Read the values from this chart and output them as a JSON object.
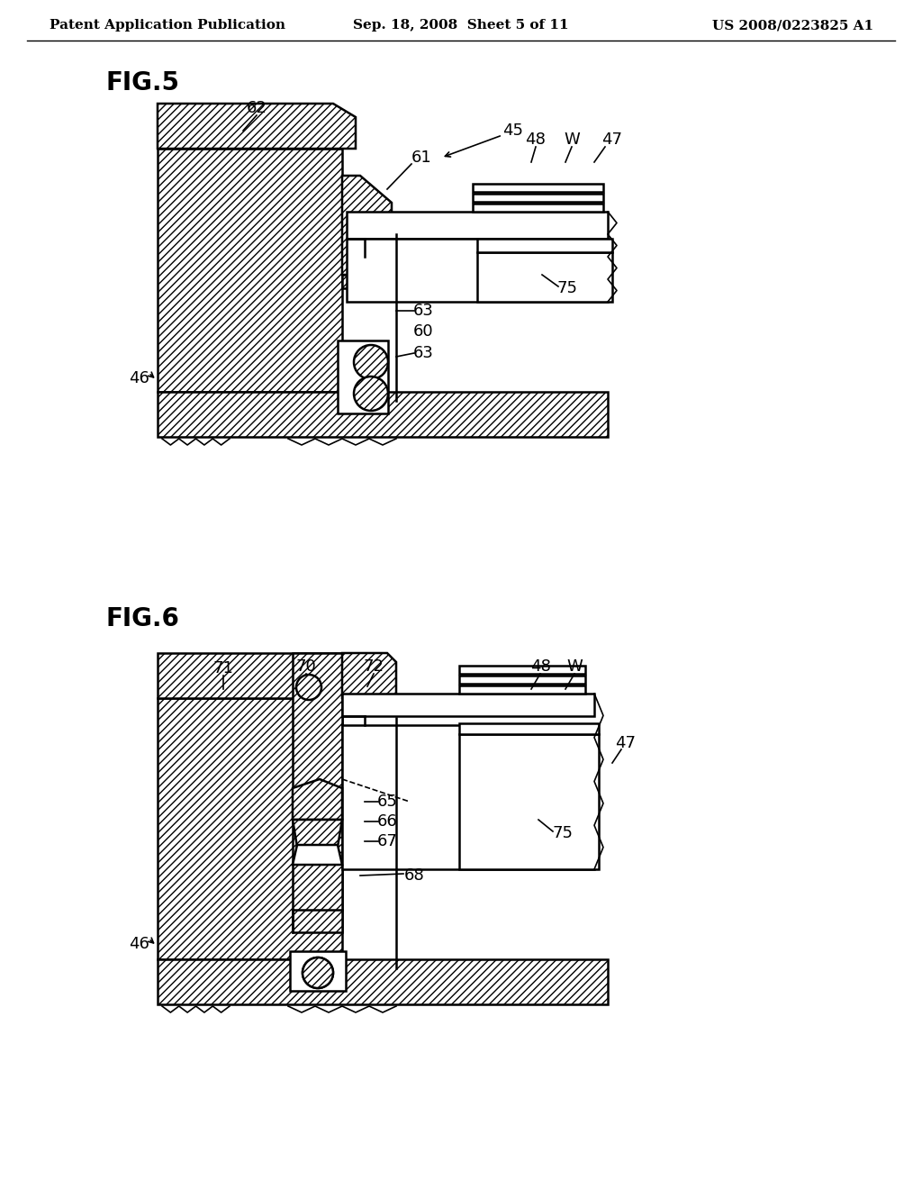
{
  "background_color": "#ffffff",
  "header_left": "Patent Application Publication",
  "header_center": "Sep. 18, 2008  Sheet 5 of 11",
  "header_right": "US 2008/0223825 A1",
  "fig5_title": "FIG.5",
  "fig6_title": "FIG.6",
  "header_fontsize": 11,
  "title_fontsize": 20,
  "label_fontsize": 13
}
